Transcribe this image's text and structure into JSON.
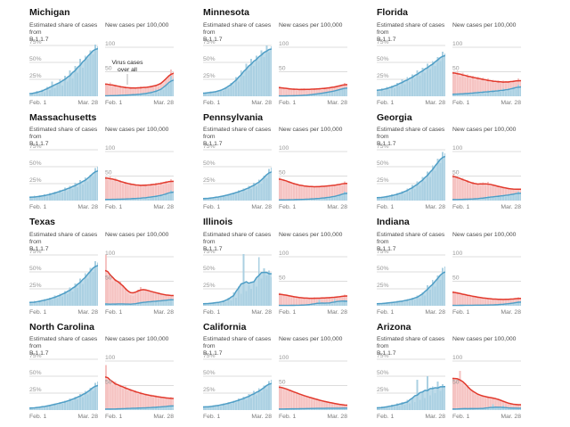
{
  "page": {
    "background": "#ffffff"
  },
  "labels": {
    "share_label_line1": "Estimated share of cases from",
    "share_label_line2": "B.1.1.7",
    "cases_label": "New cases per 100,000",
    "x_start": "Feb. 1",
    "x_end": "Mar. 28",
    "share_ticks": [
      "75%",
      "50%",
      "25%"
    ],
    "cases_ticks": [
      "100",
      "50"
    ]
  },
  "colors": {
    "blue_bar": "#abd0e2",
    "blue_area": "#bedbe9",
    "blue_line": "#4f9ec6",
    "pink_bar": "#f5c3c2",
    "pink_area": "#f9d3d2",
    "red_line": "#e23a2d",
    "grid_line": "#dcdcdc",
    "tick_text": "#979797",
    "annotation_text": "#222222",
    "annotation_line": "#999999"
  },
  "chart_data": {
    "type": "bar",
    "layout": "small-multiples-grid-4x3",
    "x_range": [
      "Feb. 1",
      "Mar. 28"
    ],
    "share_axis": {
      "ticks": [
        75,
        50,
        25
      ],
      "unit": "%",
      "max_displayed": 85
    },
    "cases_axis": {
      "ticks": [
        100,
        50
      ],
      "unit": "per 100,000",
      "max_displayed": 118
    },
    "series_note": "share = estimated % of cases from B.1.1.7 (blue bars + blue trend line); cases = new cases per 100,000 (pink bars + red trend line); blue overlay on cases chart = share x cases",
    "states": [
      {
        "name": "Michigan",
        "annotation": {
          "line1": "Virus cases",
          "line2": "over all"
        },
        "share": [
          2,
          5,
          3,
          8,
          4,
          10,
          6,
          14,
          9,
          22,
          12,
          18,
          25,
          16,
          30,
          22,
          38,
          26,
          45,
          35,
          55,
          42,
          60,
          55,
          68,
          62,
          76,
          74
        ],
        "cases": [
          26,
          22,
          28,
          20,
          24,
          18,
          22,
          16,
          20,
          15,
          19,
          14,
          18,
          16,
          20,
          15,
          19,
          17,
          22,
          18,
          24,
          20,
          28,
          25,
          36,
          40,
          55,
          50
        ]
      },
      {
        "name": "Minnesota",
        "share": [
          4,
          6,
          3,
          7,
          5,
          8,
          6,
          10,
          8,
          14,
          12,
          20,
          16,
          28,
          22,
          38,
          30,
          48,
          38,
          55,
          45,
          60,
          52,
          68,
          58,
          75,
          65,
          74
        ],
        "cases": [
          20,
          16,
          18,
          14,
          17,
          13,
          16,
          12,
          15,
          13,
          16,
          12,
          15,
          13,
          16,
          14,
          17,
          13,
          18,
          15,
          19,
          16,
          21,
          18,
          23,
          20,
          27,
          25
        ]
      },
      {
        "name": "Florida",
        "share": [
          9,
          6,
          12,
          8,
          14,
          10,
          16,
          12,
          20,
          15,
          25,
          18,
          28,
          22,
          32,
          26,
          38,
          30,
          42,
          35,
          48,
          40,
          52,
          45,
          58,
          52,
          66,
          63
        ],
        "cases": [
          50,
          44,
          52,
          40,
          48,
          38,
          45,
          36,
          42,
          34,
          40,
          32,
          38,
          30,
          36,
          28,
          34,
          27,
          33,
          26,
          32,
          26,
          31,
          27,
          33,
          28,
          36,
          31
        ]
      },
      {
        "name": "Massachusetts",
        "share": [
          5,
          3,
          7,
          4,
          8,
          5,
          9,
          6,
          11,
          8,
          13,
          10,
          16,
          12,
          19,
          14,
          22,
          17,
          26,
          20,
          30,
          24,
          34,
          28,
          38,
          36,
          48,
          50
        ],
        "cases": [
          48,
          42,
          50,
          40,
          46,
          38,
          42,
          35,
          38,
          32,
          36,
          30,
          34,
          29,
          33,
          28,
          34,
          29,
          35,
          30,
          36,
          31,
          38,
          33,
          40,
          35,
          44,
          39
        ]
      },
      {
        "name": "Pennsylvania",
        "share": [
          3,
          2,
          4,
          3,
          5,
          4,
          6,
          5,
          8,
          6,
          10,
          8,
          12,
          10,
          15,
          12,
          18,
          14,
          22,
          17,
          26,
          21,
          31,
          25,
          37,
          33,
          47,
          49
        ],
        "cases": [
          47,
          42,
          44,
          38,
          40,
          34,
          36,
          31,
          33,
          29,
          31,
          28,
          30,
          27,
          29,
          27,
          30,
          27,
          31,
          28,
          32,
          29,
          33,
          30,
          35,
          31,
          39,
          35
        ]
      },
      {
        "name": "Georgia",
        "share": [
          4,
          3,
          6,
          4,
          7,
          5,
          9,
          6,
          11,
          8,
          14,
          10,
          18,
          13,
          23,
          17,
          28,
          22,
          35,
          28,
          43,
          35,
          52,
          44,
          62,
          55,
          72,
          70
        ],
        "cases": [
          54,
          46,
          50,
          42,
          46,
          38,
          42,
          34,
          38,
          31,
          35,
          30,
          37,
          33,
          38,
          30,
          34,
          28,
          31,
          26,
          28,
          24,
          26,
          22,
          24,
          21,
          25,
          23
        ]
      },
      {
        "name": "Texas",
        "share": [
          5,
          3,
          7,
          4,
          8,
          6,
          10,
          7,
          12,
          9,
          15,
          11,
          18,
          14,
          22,
          17,
          27,
          21,
          33,
          26,
          40,
          32,
          48,
          40,
          56,
          50,
          66,
          64
        ],
        "cases": [
          105,
          58,
          62,
          50,
          55,
          48,
          50,
          42,
          36,
          26,
          22,
          20,
          26,
          33,
          38,
          34,
          32,
          30,
          30,
          28,
          27,
          25,
          24,
          23,
          22,
          20,
          22,
          20
        ]
      },
      {
        "name": "Illinois",
        "share": [
          3,
          2,
          4,
          3,
          5,
          3,
          6,
          4,
          8,
          5,
          12,
          8,
          20,
          12,
          28,
          18,
          76,
          22,
          30,
          25,
          35,
          28,
          72,
          40,
          55,
          45,
          52,
          42
        ],
        "cases": [
          26,
          22,
          24,
          20,
          22,
          18,
          20,
          16,
          18,
          15,
          17,
          14,
          16,
          14,
          17,
          14,
          16,
          15,
          17,
          15,
          18,
          15,
          19,
          16,
          20,
          17,
          23,
          20
        ]
      },
      {
        "name": "Indiana",
        "share": [
          3,
          2,
          4,
          3,
          5,
          3,
          6,
          4,
          7,
          5,
          8,
          6,
          10,
          7,
          12,
          9,
          15,
          11,
          20,
          15,
          30,
          24,
          38,
          28,
          45,
          38,
          56,
          58
        ],
        "cases": [
          30,
          26,
          28,
          23,
          25,
          21,
          23,
          19,
          21,
          17,
          19,
          15,
          17,
          14,
          16,
          13,
          15,
          12,
          14,
          12,
          14,
          12,
          14,
          12,
          15,
          13,
          17,
          15
        ]
      },
      {
        "name": "North Carolina",
        "share": [
          3,
          2,
          4,
          3,
          5,
          4,
          6,
          5,
          8,
          6,
          10,
          8,
          12,
          9,
          14,
          11,
          17,
          13,
          20,
          16,
          24,
          19,
          28,
          23,
          33,
          28,
          40,
          42
        ],
        "cases": [
          92,
          55,
          62,
          52,
          58,
          48,
          52,
          44,
          48,
          40,
          44,
          36,
          40,
          33,
          37,
          30,
          34,
          28,
          32,
          26,
          30,
          25,
          28,
          24,
          26,
          22,
          26,
          22
        ]
      },
      {
        "name": "California",
        "share": [
          5,
          3,
          6,
          4,
          7,
          5,
          8,
          6,
          10,
          7,
          12,
          9,
          14,
          11,
          17,
          13,
          20,
          15,
          24,
          18,
          28,
          22,
          32,
          26,
          36,
          31,
          43,
          45
        ],
        "cases": [
          50,
          46,
          46,
          42,
          42,
          38,
          38,
          34,
          34,
          30,
          30,
          27,
          27,
          24,
          24,
          21,
          21,
          18,
          18,
          16,
          16,
          14,
          14,
          12,
          12,
          10,
          10,
          9
        ]
      },
      {
        "name": "Arizona",
        "share": [
          3,
          2,
          5,
          3,
          6,
          4,
          8,
          5,
          10,
          6,
          12,
          8,
          15,
          10,
          18,
          12,
          45,
          15,
          26,
          18,
          50,
          22,
          35,
          25,
          42,
          28,
          38,
          35
        ],
        "cases": [
          66,
          58,
          62,
          80,
          55,
          48,
          50,
          42,
          38,
          32,
          34,
          28,
          30,
          25,
          28,
          24,
          26,
          22,
          24,
          20,
          18,
          15,
          14,
          12,
          12,
          10,
          12,
          10
        ]
      }
    ]
  }
}
